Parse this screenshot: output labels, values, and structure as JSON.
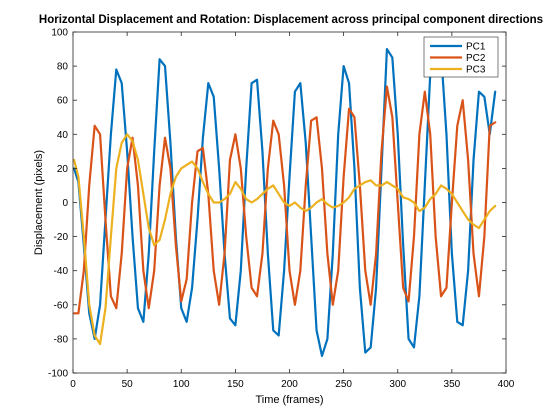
{
  "chart_data": {
    "type": "line",
    "title": "Horizontal Displacement and Rotation: Displacement across principal component directions",
    "xlabel": "Time (frames)",
    "ylabel": "Displacement (pixels)",
    "xlim": [
      0,
      400
    ],
    "ylim": [
      -100,
      100
    ],
    "xticks": [
      0,
      50,
      100,
      150,
      200,
      250,
      300,
      350,
      400
    ],
    "yticks": [
      -100,
      -80,
      -60,
      -40,
      -20,
      0,
      20,
      40,
      60,
      80,
      100
    ],
    "grid": false,
    "legend_position": "top-right",
    "series": [
      {
        "name": "PC1",
        "color": "#0072BD",
        "x": [
          1,
          5,
          10,
          15,
          20,
          25,
          30,
          35,
          40,
          45,
          50,
          55,
          60,
          65,
          70,
          75,
          80,
          85,
          90,
          95,
          100,
          105,
          110,
          115,
          120,
          125,
          130,
          135,
          140,
          145,
          150,
          155,
          160,
          165,
          170,
          175,
          180,
          185,
          190,
          195,
          200,
          205,
          210,
          215,
          220,
          225,
          230,
          235,
          240,
          245,
          250,
          255,
          260,
          265,
          270,
          275,
          280,
          285,
          290,
          295,
          300,
          305,
          310,
          315,
          320,
          325,
          330,
          335,
          340,
          345,
          350,
          355,
          360,
          365,
          370,
          375,
          380,
          385,
          390
        ],
        "y": [
          20,
          12,
          -25,
          -65,
          -80,
          -60,
          -10,
          40,
          78,
          70,
          30,
          -20,
          -62,
          -70,
          -30,
          30,
          84,
          80,
          35,
          -20,
          -62,
          -70,
          -50,
          -10,
          38,
          70,
          62,
          20,
          -30,
          -68,
          -72,
          -40,
          20,
          70,
          72,
          30,
          -30,
          -75,
          -78,
          -40,
          15,
          65,
          70,
          35,
          -20,
          -75,
          -90,
          -80,
          -30,
          40,
          80,
          70,
          20,
          -50,
          -88,
          -85,
          -50,
          20,
          90,
          85,
          40,
          -25,
          -80,
          -85,
          -55,
          10,
          75,
          95,
          88,
          40,
          -30,
          -70,
          -72,
          -40,
          25,
          65,
          62,
          40,
          65
        ]
      },
      {
        "name": "PC2",
        "color": "#D95319",
        "x": [
          1,
          5,
          10,
          15,
          20,
          25,
          30,
          35,
          40,
          45,
          50,
          55,
          60,
          65,
          70,
          75,
          80,
          85,
          90,
          95,
          100,
          105,
          110,
          115,
          120,
          125,
          130,
          135,
          140,
          145,
          150,
          155,
          160,
          165,
          170,
          175,
          180,
          185,
          190,
          195,
          200,
          205,
          210,
          215,
          220,
          225,
          230,
          235,
          240,
          245,
          250,
          255,
          260,
          265,
          270,
          275,
          280,
          285,
          290,
          295,
          300,
          305,
          310,
          315,
          320,
          325,
          330,
          335,
          340,
          345,
          350,
          355,
          360,
          365,
          370,
          375,
          380,
          385,
          390
        ],
        "y": [
          -65,
          -65,
          -40,
          10,
          45,
          40,
          -10,
          -55,
          -62,
          -30,
          20,
          38,
          10,
          -40,
          -62,
          -40,
          10,
          38,
          20,
          -25,
          -58,
          -45,
          0,
          30,
          32,
          5,
          -40,
          -60,
          -30,
          25,
          40,
          20,
          -20,
          -50,
          -55,
          -30,
          20,
          48,
          40,
          10,
          -40,
          -60,
          -40,
          10,
          48,
          50,
          20,
          -30,
          -60,
          -40,
          15,
          55,
          50,
          10,
          -40,
          -60,
          -30,
          30,
          68,
          50,
          0,
          -50,
          -58,
          -20,
          40,
          65,
          40,
          -20,
          -55,
          -50,
          0,
          45,
          60,
          25,
          -30,
          -55,
          -20,
          45,
          47
        ]
      },
      {
        "name": "PC3",
        "color": "#EDB120",
        "x": [
          1,
          5,
          10,
          15,
          20,
          25,
          30,
          35,
          40,
          45,
          50,
          55,
          60,
          65,
          70,
          75,
          80,
          85,
          90,
          95,
          100,
          105,
          110,
          115,
          120,
          125,
          130,
          135,
          140,
          145,
          150,
          155,
          160,
          165,
          170,
          175,
          180,
          185,
          190,
          195,
          200,
          205,
          210,
          215,
          220,
          225,
          230,
          235,
          240,
          245,
          250,
          255,
          260,
          265,
          270,
          275,
          280,
          285,
          290,
          295,
          300,
          305,
          310,
          315,
          320,
          325,
          330,
          335,
          340,
          345,
          350,
          355,
          360,
          365,
          370,
          375,
          380,
          385,
          390
        ],
        "y": [
          25,
          15,
          -20,
          -60,
          -78,
          -83,
          -62,
          -20,
          20,
          35,
          40,
          36,
          25,
          5,
          -15,
          -25,
          -22,
          -10,
          5,
          15,
          20,
          22,
          24,
          20,
          12,
          5,
          0,
          0,
          2,
          5,
          12,
          8,
          2,
          0,
          2,
          5,
          8,
          10,
          5,
          0,
          -2,
          0,
          -3,
          -5,
          -3,
          0,
          2,
          -1,
          -3,
          -2,
          0,
          3,
          8,
          10,
          12,
          13,
          10,
          10,
          12,
          10,
          8,
          3,
          2,
          0,
          -5,
          -3,
          2,
          5,
          10,
          8,
          5,
          0,
          -5,
          -10,
          -13,
          -15,
          -10,
          -5,
          -2
        ]
      }
    ]
  }
}
